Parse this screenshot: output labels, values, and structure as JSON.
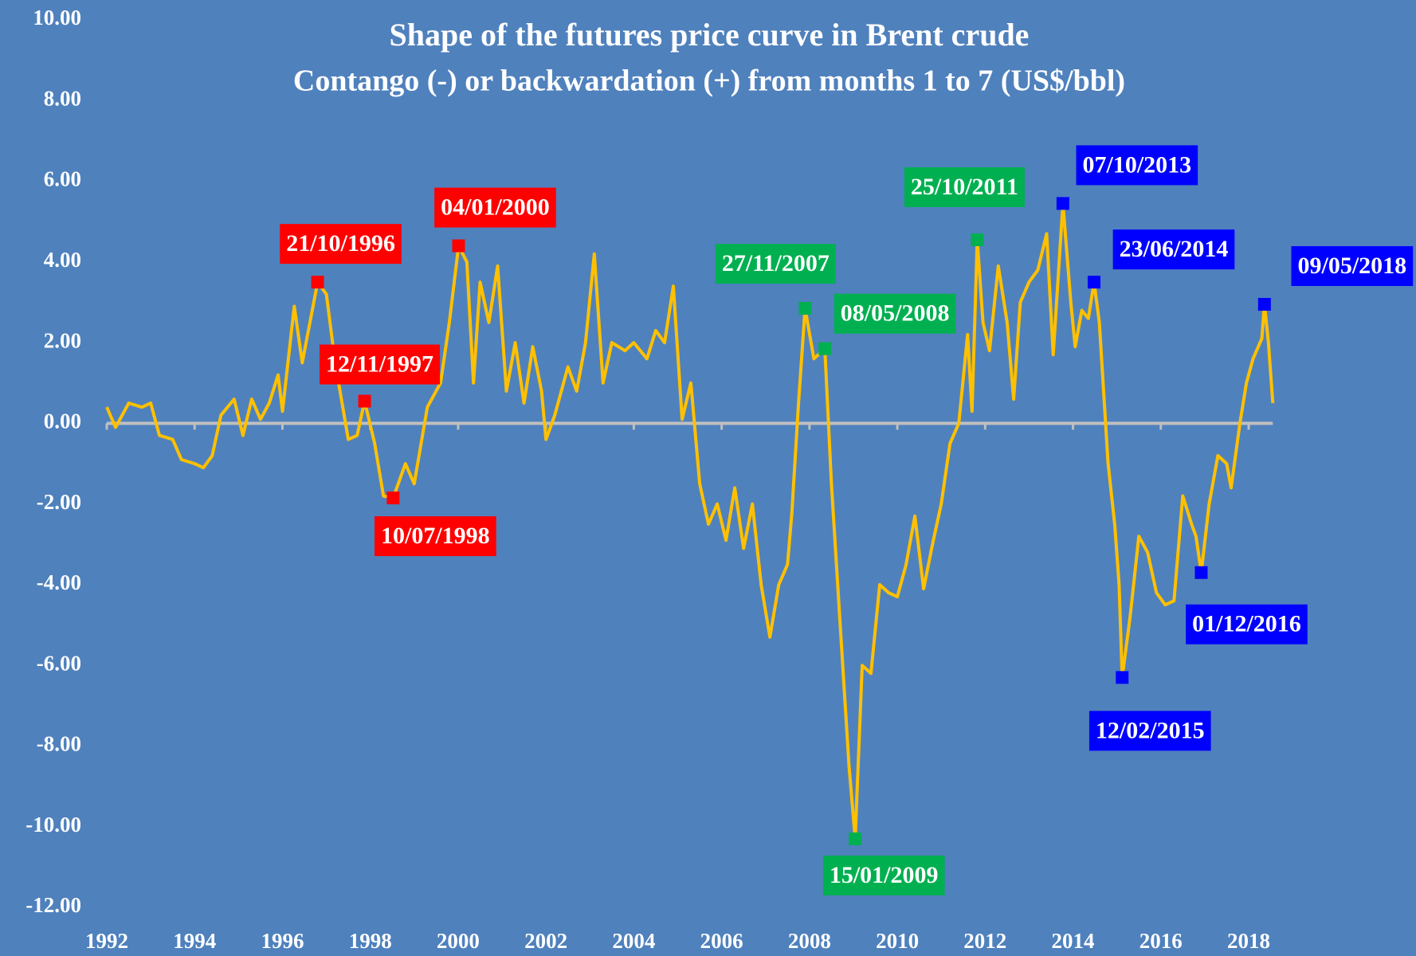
{
  "chart_data": {
    "type": "line",
    "title": "Shape of  the futures price curve in Brent crude",
    "subtitle": "Contango (-) or backwardation (+) from months 1 to 7 (US$/bbl)",
    "color": "#ffc000",
    "background": "#4f81bd",
    "zero_line_color": "#bfbfbf",
    "x": [
      1992.0,
      1992.2,
      1992.5,
      1992.8,
      1993.0,
      1993.2,
      1993.5,
      1993.7,
      1994.0,
      1994.2,
      1994.4,
      1994.6,
      1994.9,
      1995.1,
      1995.3,
      1995.5,
      1995.7,
      1995.9,
      1996.0,
      1996.27,
      1996.45,
      1996.8,
      1997.0,
      1997.2,
      1997.5,
      1997.7,
      1997.87,
      1998.1,
      1998.3,
      1998.52,
      1998.8,
      1999.0,
      1999.3,
      1999.6,
      1999.8,
      2000.01,
      2000.2,
      2000.35,
      2000.5,
      2000.7,
      2000.9,
      2001.1,
      2001.3,
      2001.5,
      2001.7,
      2001.9,
      2002.0,
      2002.2,
      2002.5,
      2002.7,
      2002.9,
      2003.1,
      2003.3,
      2003.5,
      2003.8,
      2004.0,
      2004.3,
      2004.5,
      2004.7,
      2004.9,
      2005.1,
      2005.3,
      2005.5,
      2005.7,
      2005.9,
      2006.1,
      2006.3,
      2006.5,
      2006.7,
      2006.9,
      2007.1,
      2007.3,
      2007.5,
      2007.6,
      2007.75,
      2007.9,
      2008.1,
      2008.35,
      2008.5,
      2008.7,
      2008.9,
      2009.04,
      2009.2,
      2009.4,
      2009.6,
      2009.8,
      2010.0,
      2010.2,
      2010.4,
      2010.6,
      2010.8,
      2011.0,
      2011.2,
      2011.4,
      2011.6,
      2011.7,
      2011.82,
      2011.95,
      2012.1,
      2012.3,
      2012.5,
      2012.65,
      2012.8,
      2013.0,
      2013.2,
      2013.4,
      2013.55,
      2013.77,
      2013.95,
      2014.05,
      2014.2,
      2014.35,
      2014.48,
      2014.6,
      2014.8,
      2014.95,
      2015.05,
      2015.12,
      2015.3,
      2015.5,
      2015.7,
      2015.9,
      2016.1,
      2016.3,
      2016.5,
      2016.7,
      2016.8,
      2016.92,
      2017.1,
      2017.3,
      2017.5,
      2017.6,
      2017.8,
      2017.95,
      2018.1,
      2018.3,
      2018.36,
      2018.45,
      2018.55
    ],
    "values": [
      0.4,
      -0.1,
      0.5,
      0.4,
      0.5,
      -0.3,
      -0.4,
      -0.9,
      -1.0,
      -1.1,
      -0.8,
      0.2,
      0.6,
      -0.3,
      0.6,
      0.1,
      0.5,
      1.2,
      0.3,
      2.9,
      1.5,
      3.5,
      3.2,
      1.5,
      -0.4,
      -0.3,
      0.55,
      -0.5,
      -1.8,
      -1.85,
      -1.0,
      -1.5,
      0.4,
      1.0,
      2.5,
      4.4,
      4.0,
      1.0,
      3.5,
      2.5,
      3.9,
      0.8,
      2.0,
      0.5,
      1.9,
      0.8,
      -0.4,
      0.2,
      1.4,
      0.8,
      2.0,
      4.2,
      1.0,
      2.0,
      1.8,
      2.0,
      1.6,
      2.3,
      2.0,
      3.4,
      0.1,
      1.0,
      -1.5,
      -2.5,
      -2.0,
      -2.9,
      -1.6,
      -3.1,
      -2.0,
      -4.0,
      -5.3,
      -4.0,
      -3.5,
      -2.2,
      0.5,
      2.85,
      1.6,
      1.85,
      -1.5,
      -5.0,
      -8.5,
      -10.3,
      -6.0,
      -6.2,
      -4.0,
      -4.2,
      -4.3,
      -3.5,
      -2.3,
      -4.1,
      -3.0,
      -2.0,
      -0.5,
      0.0,
      2.2,
      0.3,
      4.55,
      2.5,
      1.8,
      3.9,
      2.5,
      0.6,
      3.0,
      3.5,
      3.8,
      4.7,
      1.7,
      5.45,
      3.0,
      1.9,
      2.8,
      2.6,
      3.5,
      2.5,
      -1.0,
      -2.5,
      -4.0,
      -6.3,
      -4.8,
      -2.8,
      -3.2,
      -4.2,
      -4.5,
      -4.4,
      -1.8,
      -2.5,
      -2.8,
      -3.7,
      -2.0,
      -0.8,
      -1.0,
      -1.6,
      0.0,
      1.0,
      1.6,
      2.1,
      2.95,
      2.0,
      0.5
    ],
    "xlim": [
      1992,
      2018
    ],
    "xticks": [
      1992,
      1994,
      1996,
      1998,
      2000,
      2002,
      2004,
      2006,
      2008,
      2010,
      2012,
      2014,
      2016,
      2018
    ],
    "ylim": [
      -12,
      10
    ],
    "yticks": [
      {
        "value": 10,
        "label": "10.00"
      },
      {
        "value": 8,
        "label": "8.00"
      },
      {
        "value": 6,
        "label": "6.00"
      },
      {
        "value": 4,
        "label": "4.00"
      },
      {
        "value": 2,
        "label": "2.00"
      },
      {
        "value": 0,
        "label": "0.00"
      },
      {
        "value": -2,
        "label": "-2.00"
      },
      {
        "value": -4,
        "label": "-4.00"
      },
      {
        "value": -6,
        "label": "-6.00"
      },
      {
        "value": -8,
        "label": "-8.00"
      },
      {
        "value": -10,
        "label": "-10.00"
      },
      {
        "value": -12,
        "label": "-12.00"
      }
    ],
    "annotations": [
      {
        "label": "21/10/1996",
        "x": 1996.8,
        "y": 3.5,
        "color": "#ff0000"
      },
      {
        "label": "04/01/2000",
        "x": 2000.01,
        "y": 4.4,
        "color": "#ff0000"
      },
      {
        "label": "12/11/1997",
        "x": 1997.87,
        "y": 0.55,
        "color": "#ff0000"
      },
      {
        "label": "10/07/1998",
        "x": 1998.52,
        "y": -1.85,
        "color": "#ff0000"
      },
      {
        "label": "27/11/2007",
        "x": 2007.9,
        "y": 2.85,
        "color": "#00b050"
      },
      {
        "label": "08/05/2008",
        "x": 2008.35,
        "y": 1.85,
        "color": "#00b050"
      },
      {
        "label": "15/01/2009",
        "x": 2009.04,
        "y": -10.3,
        "color": "#00b050"
      },
      {
        "label": "25/10/2011",
        "x": 2011.82,
        "y": 4.55,
        "color": "#00b050"
      },
      {
        "label": "07/10/2013",
        "x": 2013.77,
        "y": 5.45,
        "color": "#0000ff"
      },
      {
        "label": "23/06/2014",
        "x": 2014.48,
        "y": 3.5,
        "color": "#0000ff"
      },
      {
        "label": "12/02/2015",
        "x": 2015.12,
        "y": -6.3,
        "color": "#0000ff"
      },
      {
        "label": "01/12/2016",
        "x": 2016.92,
        "y": -3.7,
        "color": "#0000ff"
      },
      {
        "label": "09/05/2018",
        "x": 2018.36,
        "y": 2.95,
        "color": "#0000ff"
      }
    ]
  }
}
